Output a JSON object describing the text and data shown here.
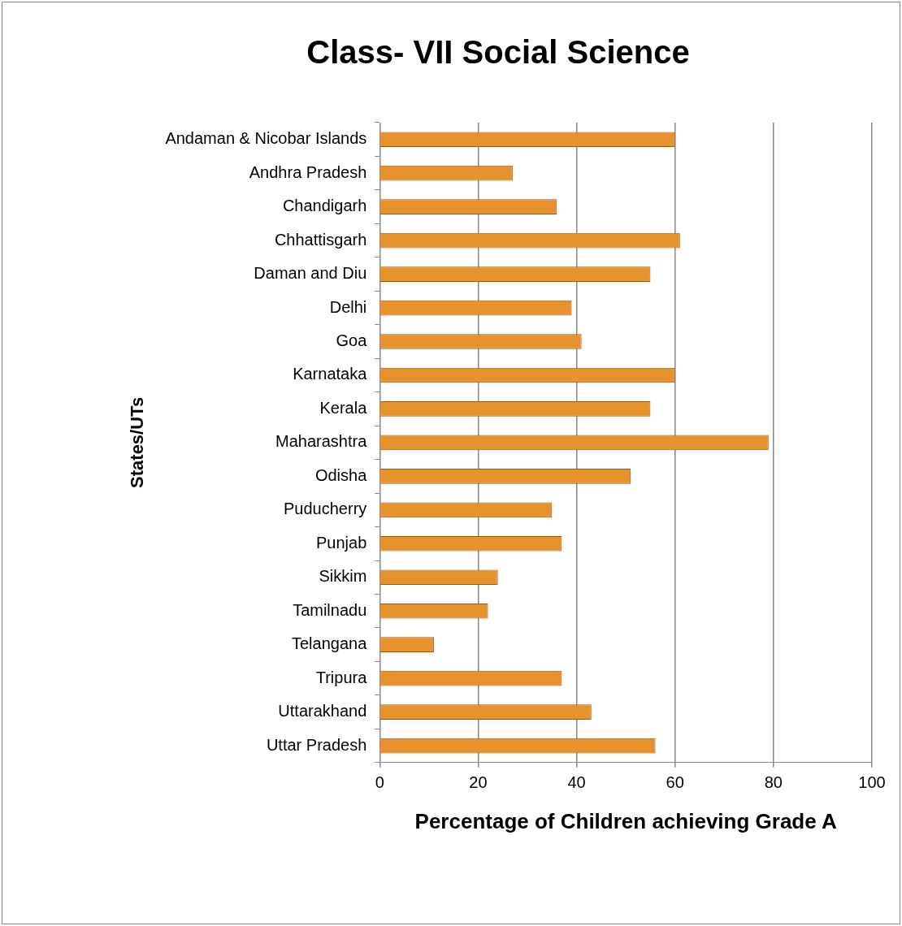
{
  "chart_data": {
    "type": "bar",
    "orientation": "horizontal",
    "title": "Class- VII Social Science",
    "xlabel": "Percentage of Children achieving Grade A",
    "ylabel": "States/UTs",
    "categories": [
      "Andaman & Nicobar Islands",
      "Andhra Pradesh",
      "Chandigarh",
      "Chhattisgarh",
      "Daman and Diu",
      "Delhi",
      "Goa",
      "Karnataka",
      "Kerala",
      "Maharashtra",
      "Odisha",
      "Puducherry",
      "Punjab",
      "Sikkim",
      "Tamilnadu",
      "Telangana",
      "Tripura",
      "Uttarakhand",
      "Uttar Pradesh"
    ],
    "values": [
      60,
      27,
      36,
      61,
      55,
      39,
      41,
      60,
      55,
      79,
      51,
      35,
      37,
      24,
      22,
      11,
      37,
      43,
      56
    ],
    "color": "#e8922e",
    "xlim": [
      0,
      100
    ],
    "xticks": [
      0,
      20,
      40,
      60,
      80,
      100
    ],
    "grid": "x",
    "legend": false
  }
}
